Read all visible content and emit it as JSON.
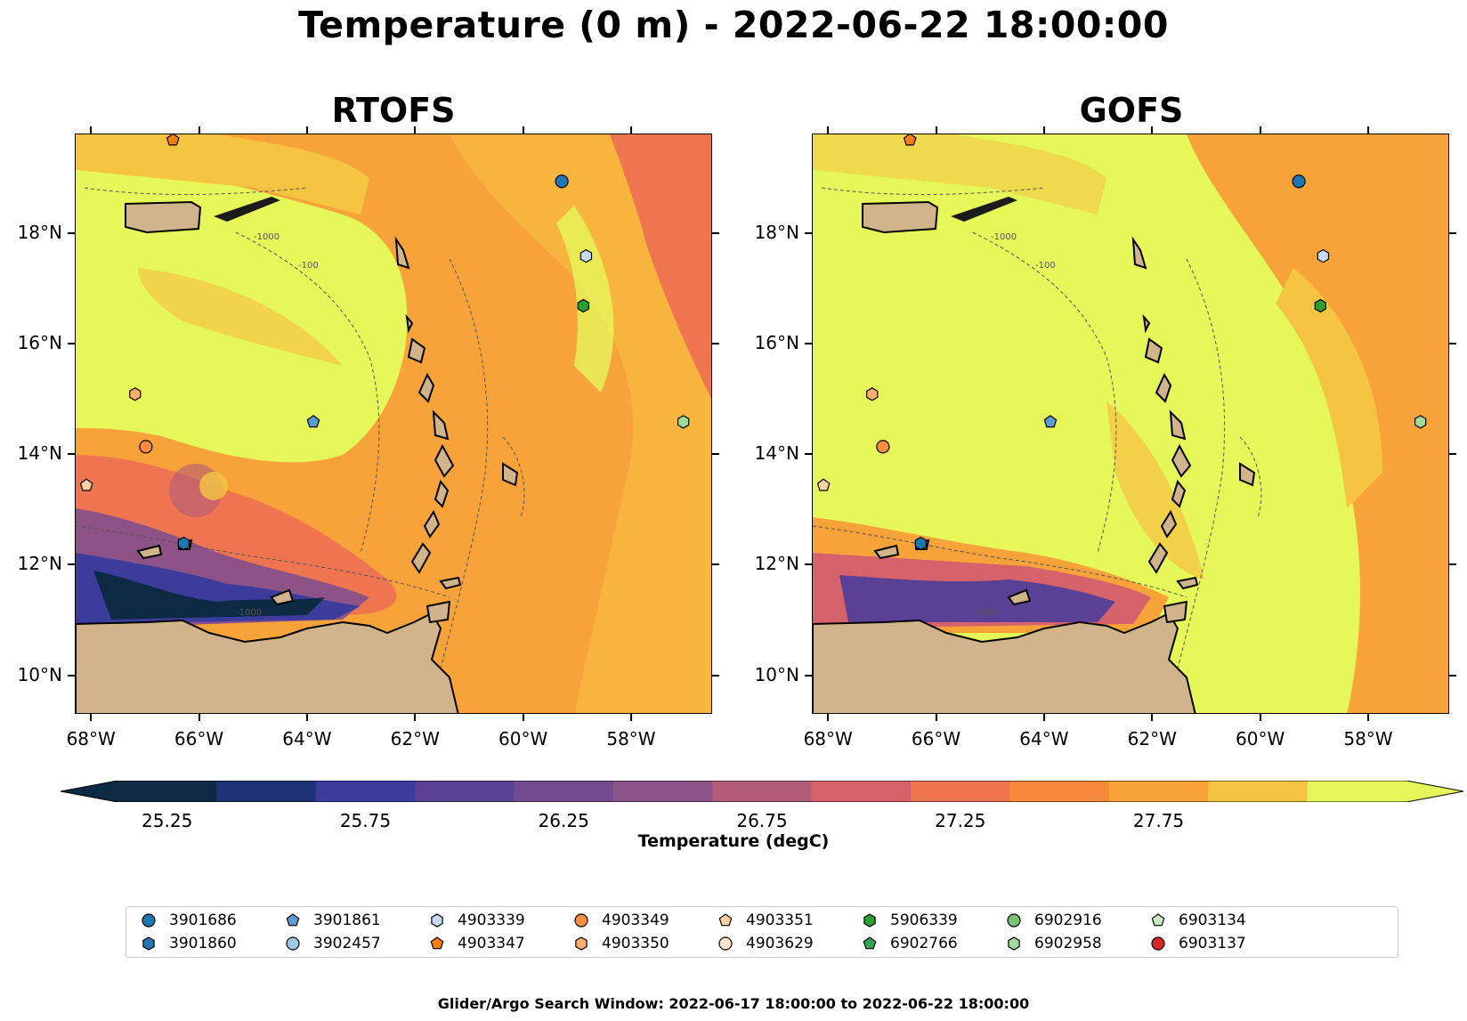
{
  "title": "Temperature (0 m) - 2022-06-22 18:00:00",
  "panels": [
    {
      "id": "rtofs",
      "title": "RTOFS"
    },
    {
      "id": "gofs",
      "title": "GOFS"
    }
  ],
  "lat_ticks": [
    "18°N",
    "16°N",
    "14°N",
    "12°N",
    "10°N"
  ],
  "lon_ticks": [
    "68°W",
    "66°W",
    "64°W",
    "62°W",
    "60°W",
    "58°W"
  ],
  "contour_labels": [
    "-1000",
    "-100"
  ],
  "colorbar": {
    "label": "Temperature (degC)",
    "ticks": [
      "25.25",
      "25.75",
      "26.25",
      "26.75",
      "27.25",
      "27.75"
    ],
    "colors": [
      "#0c2a44",
      "#1e3278",
      "#3c3c9c",
      "#5a4196",
      "#744b8f",
      "#8e5386",
      "#b25c7a",
      "#d6636b",
      "#ee7550",
      "#f7893d",
      "#f8a23a",
      "#f5c542",
      "#e6f75a"
    ],
    "extend": "both"
  },
  "legend": [
    {
      "id": "3901686",
      "color": "#1f77b4",
      "marker": "circle"
    },
    {
      "id": "3901860",
      "color": "#1f77b4",
      "marker": "hexagon"
    },
    {
      "id": "3901861",
      "color": "#5a9bd4",
      "marker": "pentagon"
    },
    {
      "id": "3902457",
      "color": "#9ecae1",
      "marker": "circle"
    },
    {
      "id": "4903339",
      "color": "#c6dbef",
      "marker": "hexagon"
    },
    {
      "id": "4903347",
      "color": "#ff7f0e",
      "marker": "pentagon"
    },
    {
      "id": "4903349",
      "color": "#fd8d3c",
      "marker": "circle"
    },
    {
      "id": "4903350",
      "color": "#fdae6b",
      "marker": "hexagon"
    },
    {
      "id": "4903351",
      "color": "#fdd0a2",
      "marker": "pentagon"
    },
    {
      "id": "4903629",
      "color": "#fee6ce",
      "marker": "circle"
    },
    {
      "id": "5906339",
      "color": "#2ca02c",
      "marker": "hexagon"
    },
    {
      "id": "6902766",
      "color": "#31a354",
      "marker": "pentagon"
    },
    {
      "id": "6902916",
      "color": "#74c476",
      "marker": "circle"
    },
    {
      "id": "6902958",
      "color": "#a1d99b",
      "marker": "hexagon"
    },
    {
      "id": "6903134",
      "color": "#c7e9c0",
      "marker": "pentagon"
    },
    {
      "id": "6903137",
      "color": "#d62728",
      "marker": "circle"
    }
  ],
  "floats_on_map": [
    {
      "id": "4903347",
      "lon": -66.5,
      "lat": 19.7
    },
    {
      "id": "3901686",
      "lon": -59.3,
      "lat": 18.95
    },
    {
      "id": "4903339",
      "lon": -58.85,
      "lat": 17.6
    },
    {
      "id": "5906339",
      "lon": -58.9,
      "lat": 16.7
    },
    {
      "id": "4903350",
      "lon": -67.2,
      "lat": 15.1
    },
    {
      "id": "3901861",
      "lon": -63.9,
      "lat": 14.6
    },
    {
      "id": "6902958",
      "lon": -57.05,
      "lat": 14.6
    },
    {
      "id": "4903349",
      "lon": -67.0,
      "lat": 14.15
    },
    {
      "id": "4903351",
      "lon": -68.1,
      "lat": 13.45
    },
    {
      "id": "3901860",
      "lon": -66.3,
      "lat": 12.4
    }
  ],
  "footer": "Glider/Argo Search Window: 2022-06-17 18:00:00 to 2022-06-22 18:00:00"
}
